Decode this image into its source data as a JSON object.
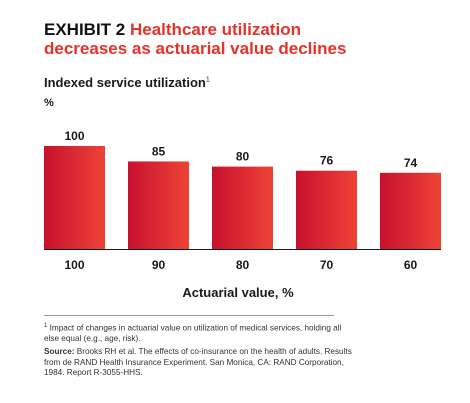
{
  "header": {
    "exhibit_label": "EXHIBIT 2",
    "title_part1": "Healthcare utilization",
    "title_part2": "decreases as actuarial value declines",
    "subtitle": "Indexed service utilization",
    "subtitle_footnote_mark": "1",
    "unit": "%"
  },
  "colors": {
    "accent": "#e5332a",
    "bar_dark": "#c8102e",
    "bar_light": "#ee4337",
    "axis": "#1a1a1a"
  },
  "chart_data": {
    "type": "bar",
    "categories": [
      "100",
      "90",
      "80",
      "70",
      "60"
    ],
    "values": [
      100,
      85,
      80,
      76,
      74
    ],
    "xlabel": "Actuarial value, %",
    "ylabel": "Indexed service utilization",
    "ylim": [
      0,
      100
    ],
    "grid": false,
    "legend": "none"
  },
  "footnote": {
    "mark": "1",
    "text": "Impact of changes in actuarial value on utilization of medical services, holding all else equal (e.g., age, risk).",
    "source_label": "Source:",
    "source_text": "Brooks RH et al. The effects of co-insurance on the health of adults. Results from de RAND Health Insurance Experiment. San Monica, CA: RAND Corporation, 1984. Report R-3055-HHS."
  }
}
